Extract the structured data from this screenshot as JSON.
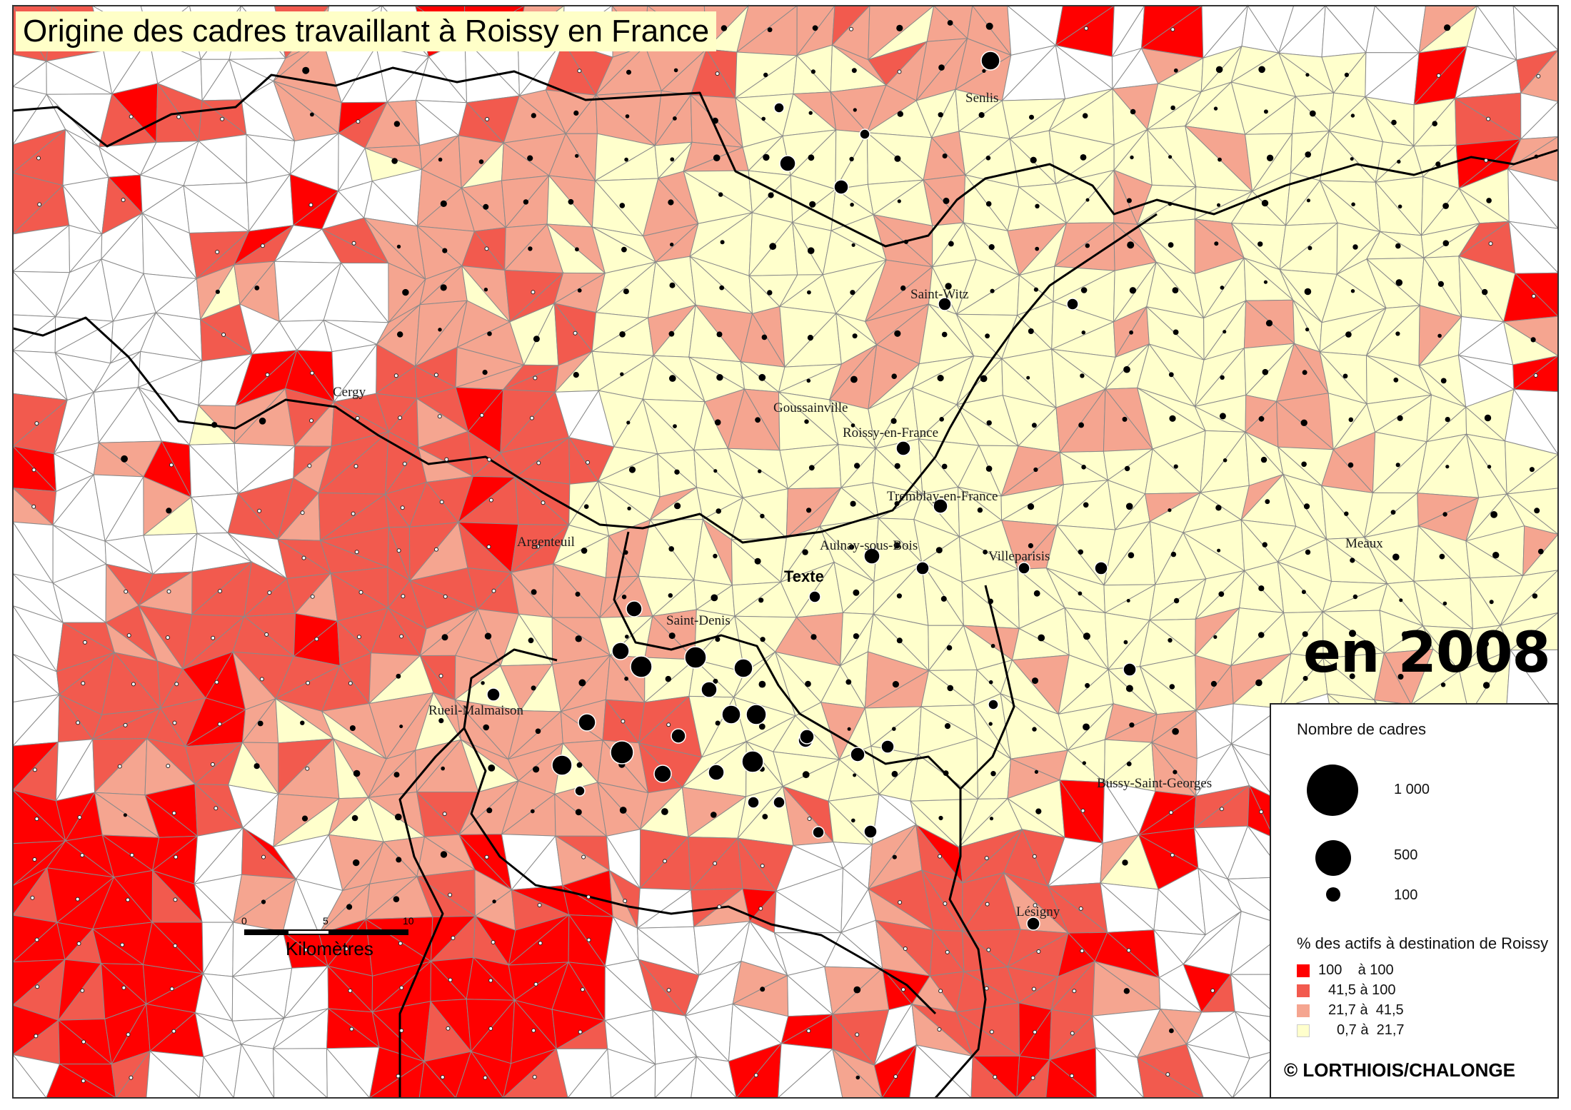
{
  "title": "Origine des cadres travaillant à Roissy en France",
  "year_label": "en 2008",
  "copyright": "© LORTHIOIS/CHALONGE",
  "colors": {
    "class1": "#ff0000",
    "class2": "#f25a4e",
    "class3": "#f5a590",
    "class4": "#ffffcc",
    "none": "#ffffff",
    "border": "#8a8a8a",
    "boundary": "#000000"
  },
  "places": [
    {
      "name": "Senlis",
      "style": "normal"
    },
    {
      "name": "Saint-Witz",
      "style": "normal"
    },
    {
      "name": "Cergy",
      "style": "normal"
    },
    {
      "name": "Goussainville",
      "style": "normal"
    },
    {
      "name": "Roissy-en-France",
      "style": "normal"
    },
    {
      "name": "Tremblay-en-France",
      "style": "normal"
    },
    {
      "name": "Argenteuil",
      "style": "normal"
    },
    {
      "name": "Aulnay-sous-Bois",
      "style": "normal"
    },
    {
      "name": "Villeparisis",
      "style": "normal"
    },
    {
      "name": "Meaux",
      "style": "normal"
    },
    {
      "name": "Texte",
      "style": "bold"
    },
    {
      "name": "Saint-Denis",
      "style": "normal"
    },
    {
      "name": "Rueil-Malmaison",
      "style": "normal"
    },
    {
      "name": "Bussy-Saint-Georges",
      "style": "normal"
    },
    {
      "name": "Lésigny",
      "style": "normal"
    }
  ],
  "scale_bar": {
    "ticks": [
      "0",
      "5",
      "10"
    ],
    "unit": "Kilomètres"
  },
  "legend": {
    "size_title": "Nombre de cadres",
    "size_classes": [
      {
        "label": "1 000",
        "value": 1000
      },
      {
        "label": "500",
        "value": 500
      },
      {
        "label": "100",
        "value": 100
      }
    ],
    "color_title": "% des actifs à destination de Roissy",
    "color_classes": [
      {
        "label": "100    à 100",
        "color": "#ff0000"
      },
      {
        "label": "41,5 à 100",
        "color": "#f25a4e"
      },
      {
        "label": "21,7 à  41,5",
        "color": "#f5a590"
      },
      {
        "label": "0,7 à  21,7",
        "color": "#ffffcc"
      }
    ]
  }
}
